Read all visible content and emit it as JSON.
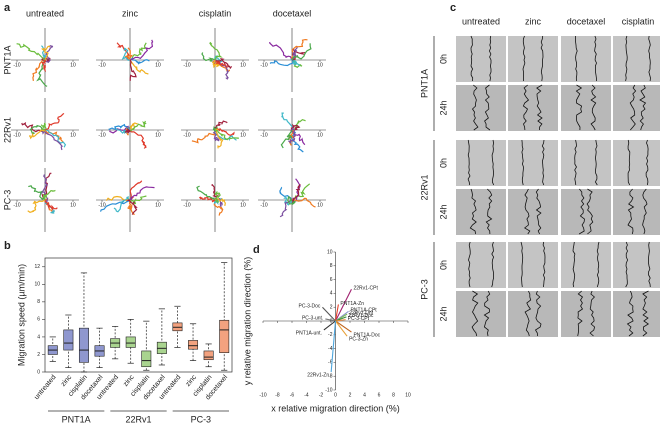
{
  "panel_labels": [
    "a",
    "b",
    "c",
    "d"
  ],
  "panel_a": {
    "columns": [
      "untreated",
      "zinc",
      "cisplatin",
      "docetaxel"
    ],
    "rows": [
      "PNT1A",
      "22Rv1",
      "PC-3"
    ],
    "ticks": [
      -10,
      10
    ]
  },
  "panel_c": {
    "columns": [
      "untreated",
      "zinc",
      "docetaxel",
      "cisplatin"
    ],
    "rows": [
      "PNT1A",
      "22Rv1",
      "PC-3"
    ],
    "timepoints": [
      "0h",
      "24h"
    ]
  },
  "chart_data": [
    {
      "type": "box",
      "ylabel": "Migration speed (µm/min)",
      "categories": [
        "untreated",
        "zinc",
        "cisplatin",
        "docetaxel"
      ],
      "ylim": [
        0,
        13
      ],
      "yticks": [
        0,
        2,
        4,
        6,
        8,
        10,
        12
      ],
      "series": [
        {
          "name": "PNT1A",
          "color": "#8f97cf",
          "values": [
            [
              1.2,
              2.0,
              2.5,
              3.0,
              4.0
            ],
            [
              0.5,
              2.5,
              3.3,
              4.8,
              6.5
            ],
            [
              0,
              1.1,
              2.5,
              5.0,
              11.3
            ],
            [
              0.5,
              1.8,
              2.4,
              3.0,
              5.0
            ]
          ]
        },
        {
          "name": "22Rv1",
          "color": "#a9d48f",
          "values": [
            [
              1.5,
              2.8,
              3.3,
              3.8,
              5.2
            ],
            [
              1.0,
              2.8,
              3.3,
              4.0,
              6.0
            ],
            [
              0.2,
              0.6,
              1.3,
              2.4,
              5.8
            ],
            [
              0.8,
              2.1,
              2.7,
              3.4,
              7.2
            ]
          ]
        },
        {
          "name": "PC-3",
          "color": "#f3a27f",
          "values": [
            [
              2.8,
              4.7,
              5.1,
              5.6,
              7.5
            ],
            [
              1.3,
              2.6,
              3.0,
              3.6,
              5.5
            ],
            [
              0.6,
              1.4,
              1.7,
              2.4,
              3.2
            ],
            [
              0.2,
              2.2,
              4.8,
              5.9,
              12.5
            ]
          ]
        }
      ]
    },
    {
      "type": "vector",
      "xlabel": "x relative migration direction (%)",
      "ylabel": "y relative migration direction (%)",
      "xlim": [
        -10,
        10
      ],
      "ylim": [
        -10,
        10
      ],
      "xticks": [
        -10,
        -8,
        -6,
        -4,
        -2,
        0,
        2,
        4,
        6,
        8,
        10
      ],
      "yticks": [
        -10,
        -8,
        -6,
        -4,
        -2,
        0,
        2,
        4,
        6,
        8,
        10
      ],
      "labels": [
        "22Rv1-CPt",
        "PC-3-Doc",
        "PNT1A-Zn",
        "PNT1A-CPt",
        "22Rv1-Unt",
        "22Rv1-Doc",
        "PC-3-CPt",
        "PC-3-unt.",
        "PNT1A-unt.",
        "PNT1A-Doc",
        "PC-3-Zn",
        "22Rv1-Zn"
      ],
      "x": [
        2.2,
        -1.8,
        0.4,
        1.8,
        1.6,
        1.5,
        1.4,
        -1.4,
        -1.6,
        2.2,
        1.6,
        -0.6
      ],
      "values": [
        4.6,
        2.0,
        2.4,
        1.4,
        1.0,
        0.6,
        0.2,
        0.3,
        -1.3,
        -1.6,
        -2.2,
        -7.4
      ],
      "colors": [
        "#a0206f",
        "#555555",
        "#e8412a",
        "#8f97cf",
        "#7dbb5b",
        "#3b8a3b",
        "#f08a3c",
        "#777777",
        "#333333",
        "#c0651e",
        "#e8a13a",
        "#4da6dd"
      ]
    }
  ]
}
